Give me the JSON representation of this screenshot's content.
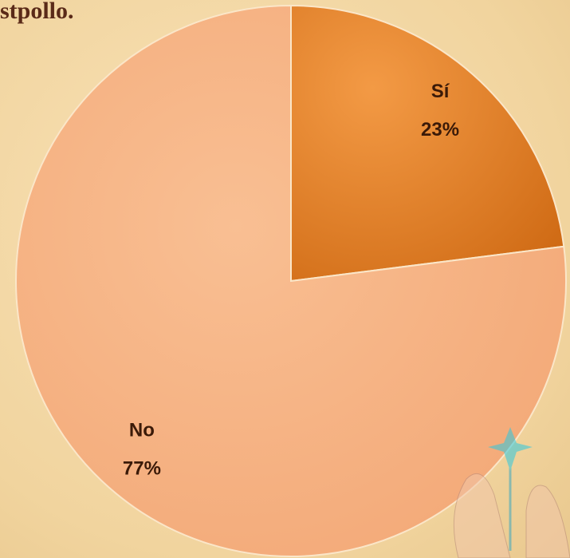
{
  "chart_data": {
    "type": "pie",
    "title": "stpollo.",
    "categories": [
      "Sí",
      "No"
    ],
    "values": [
      23,
      77
    ],
    "value_labels": [
      "23%",
      "77%"
    ],
    "colors": [
      "#e8832c",
      "#f6b282"
    ],
    "start_angle": -90,
    "direction": "clockwise"
  }
}
